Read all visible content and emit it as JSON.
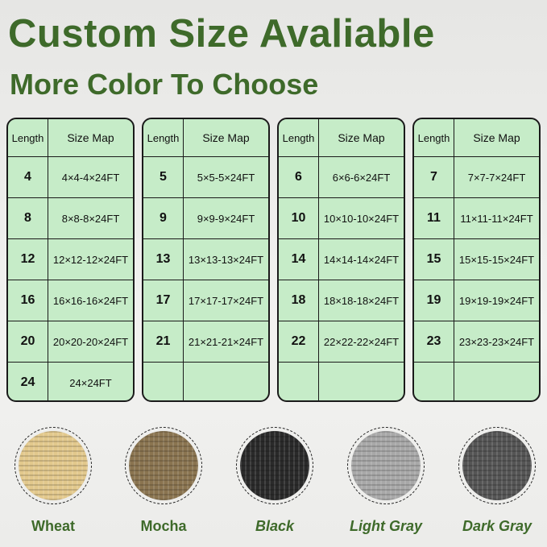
{
  "title": "Custom Size Avaliable",
  "subtitle": "More Color To Choose",
  "table_header": {
    "length": "Length",
    "size_map": "Size Map"
  },
  "tables": [
    [
      {
        "l": "4",
        "s": "4×4-4×24FT"
      },
      {
        "l": "8",
        "s": "8×8-8×24FT"
      },
      {
        "l": "12",
        "s": "12×12-12×24FT"
      },
      {
        "l": "16",
        "s": "16×16-16×24FT"
      },
      {
        "l": "20",
        "s": "20×20-20×24FT"
      },
      {
        "l": "24",
        "s": "24×24FT"
      }
    ],
    [
      {
        "l": "5",
        "s": "5×5-5×24FT"
      },
      {
        "l": "9",
        "s": "9×9-9×24FT"
      },
      {
        "l": "13",
        "s": "13×13-13×24FT"
      },
      {
        "l": "17",
        "s": "17×17-17×24FT"
      },
      {
        "l": "21",
        "s": "21×21-21×24FT"
      },
      {
        "l": "",
        "s": ""
      }
    ],
    [
      {
        "l": "6",
        "s": "6×6-6×24FT"
      },
      {
        "l": "10",
        "s": "10×10-10×24FT"
      },
      {
        "l": "14",
        "s": "14×14-14×24FT"
      },
      {
        "l": "18",
        "s": "18×18-18×24FT"
      },
      {
        "l": "22",
        "s": "22×22-22×24FT"
      },
      {
        "l": "",
        "s": ""
      }
    ],
    [
      {
        "l": "7",
        "s": "7×7-7×24FT"
      },
      {
        "l": "11",
        "s": "11×11-11×24FT"
      },
      {
        "l": "15",
        "s": "15×15-15×24FT"
      },
      {
        "l": "19",
        "s": "19×19-19×24FT"
      },
      {
        "l": "23",
        "s": "23×23-23×24FT"
      },
      {
        "l": "",
        "s": ""
      }
    ]
  ],
  "colors": [
    {
      "name": "Wheat",
      "swatch": "#e2c88c",
      "italic": false
    },
    {
      "name": "Mocha",
      "swatch": "#8a7450",
      "italic": false
    },
    {
      "name": "Black",
      "swatch": "#2a2a2a",
      "italic": true
    },
    {
      "name": "Light Gray",
      "swatch": "#a8a8a8",
      "italic": true
    },
    {
      "name": "Dark Gray",
      "swatch": "#555555",
      "italic": true
    }
  ]
}
